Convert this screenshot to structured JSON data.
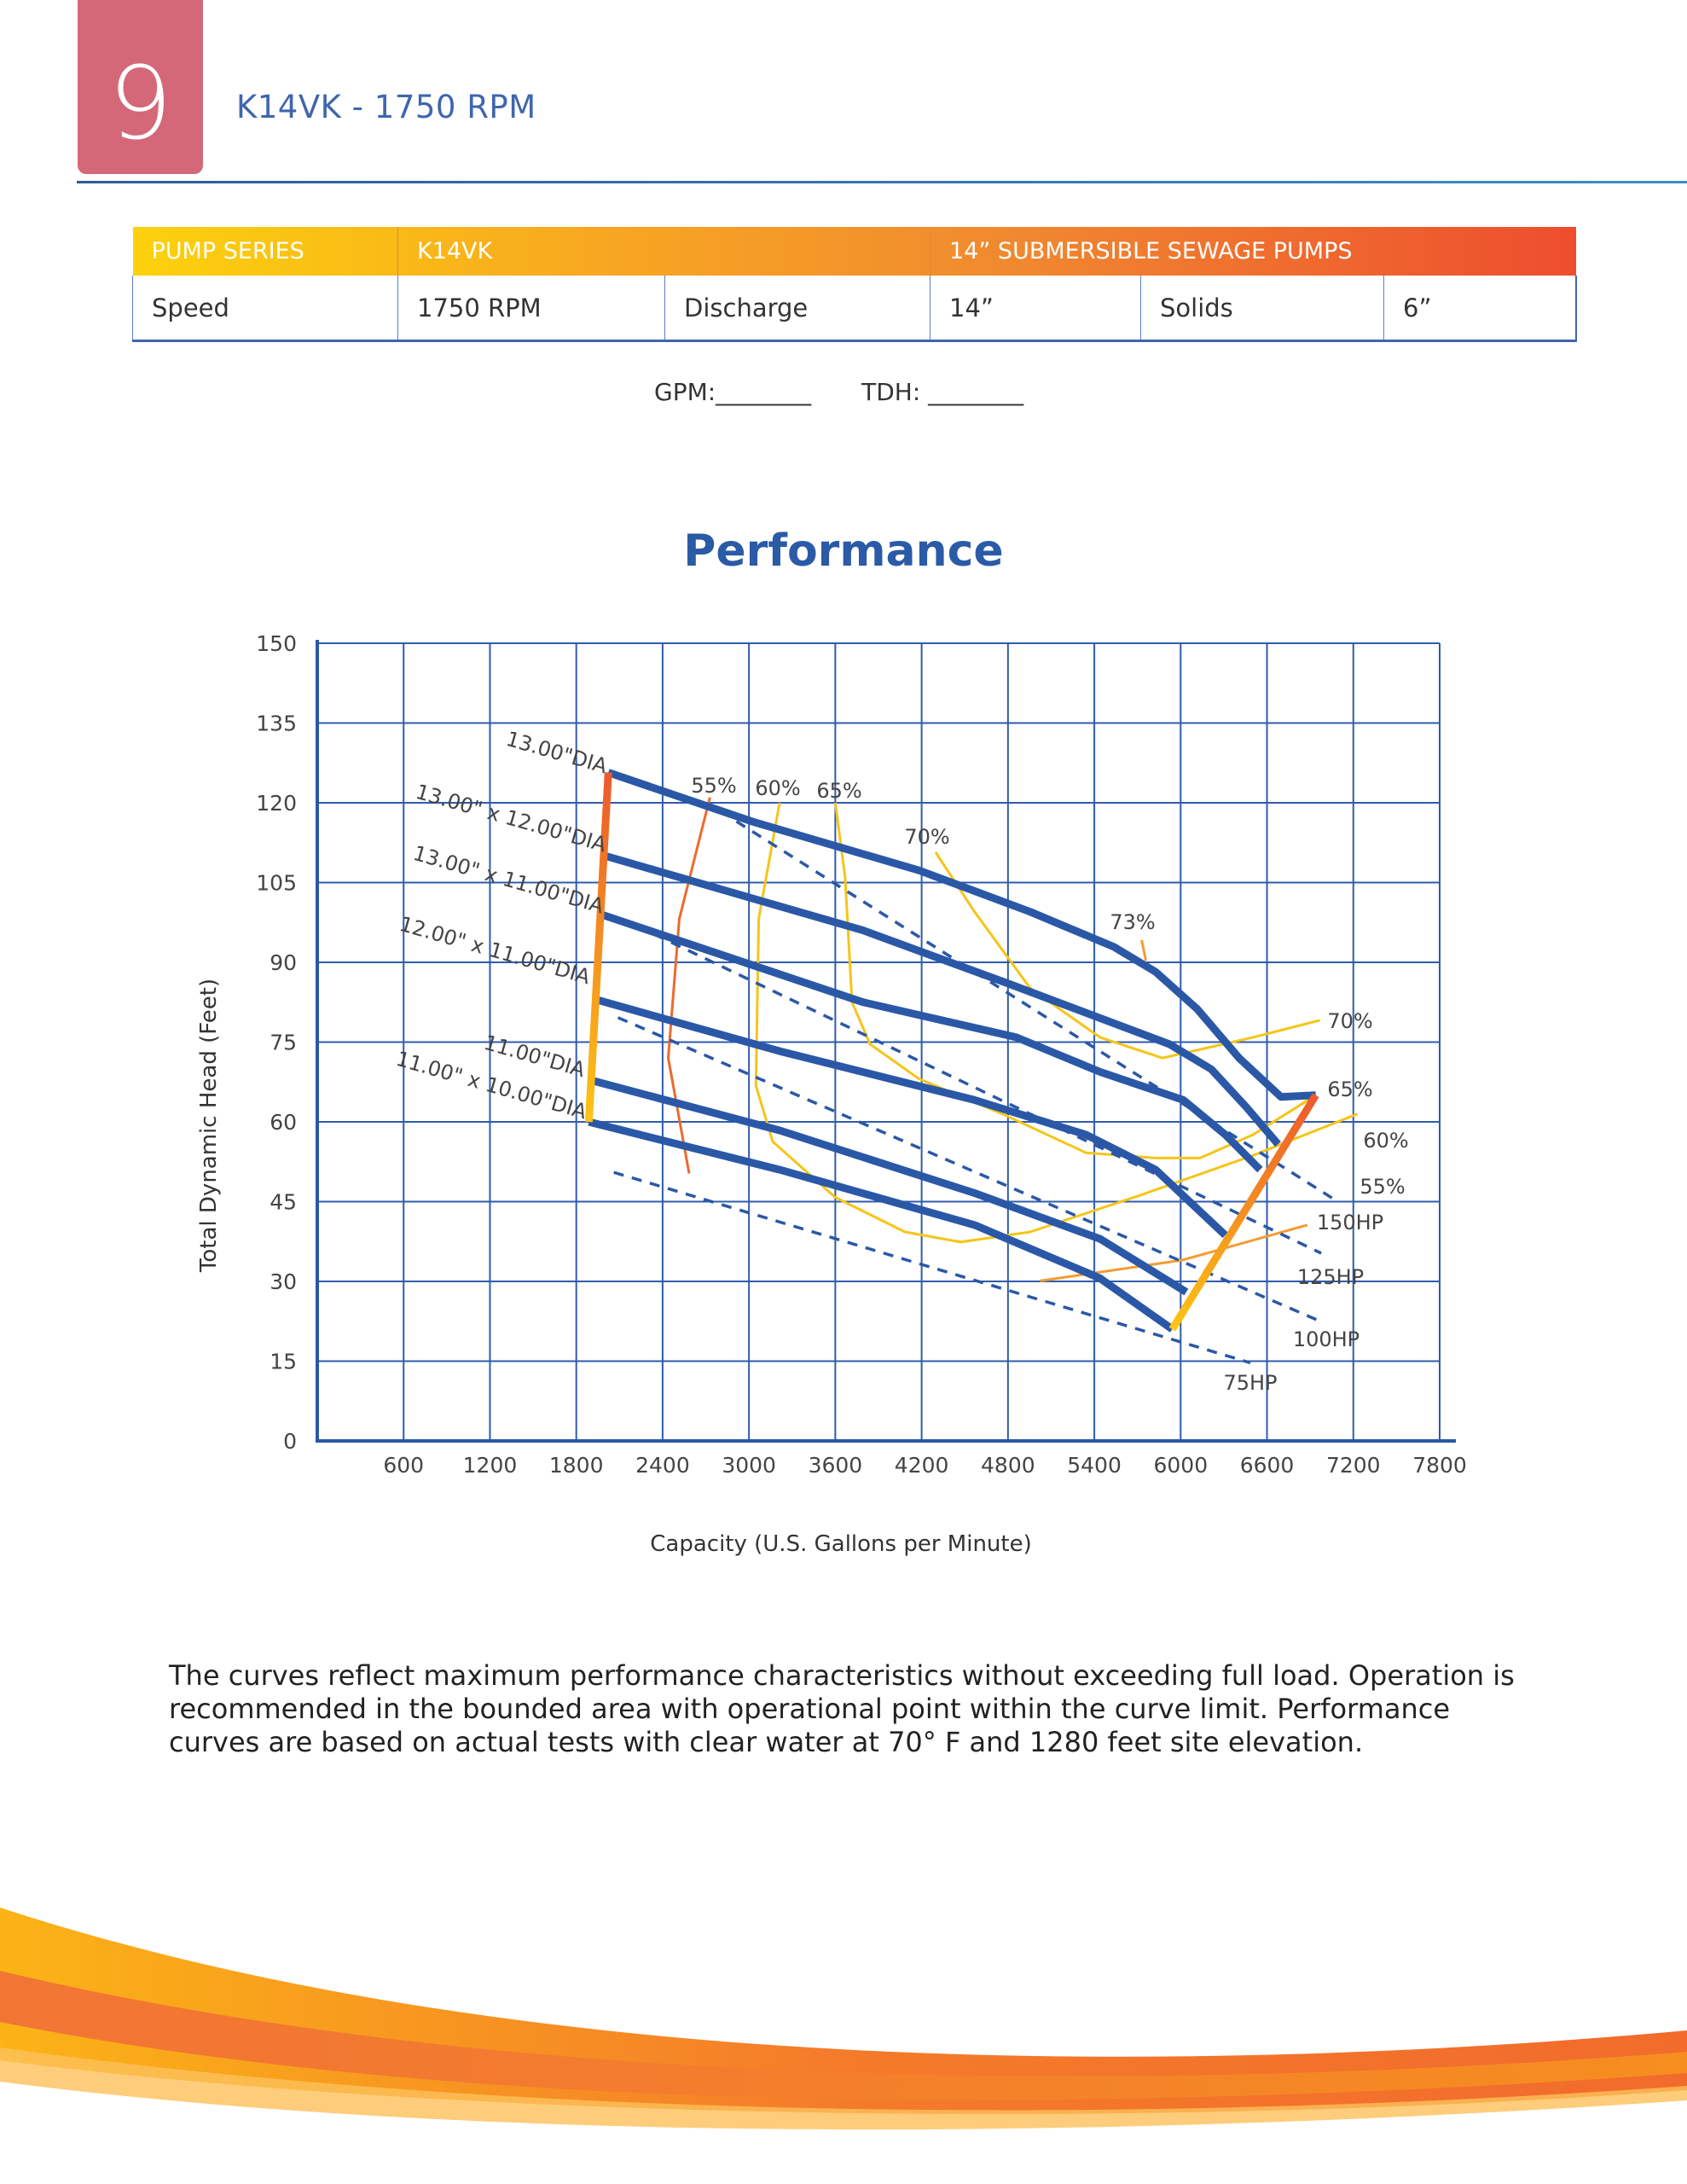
{
  "header": {
    "section_number": "9",
    "title": "K14VK - 1750 RPM"
  },
  "spec_table": {
    "head": [
      "PUMP SERIES",
      "K14VK",
      "14” SUBMERSIBLE SEWAGE PUMPS"
    ],
    "body": [
      "Speed",
      "1750 RPM",
      "Discharge",
      "14”",
      "Solids",
      "6”"
    ]
  },
  "fill_in": {
    "gpm": "GPM:________",
    "tdh": "TDH: ________"
  },
  "section_title": "Performance",
  "colors": {
    "head_curve": "#2b58a6",
    "grid": "#2f5cab",
    "yellow": "#f5c518",
    "orange": "#f39c33",
    "red_orange": "#ec6a30",
    "accent_tab": "#d56878"
  },
  "chart_data": {
    "type": "line",
    "xlabel": "Capacity (U.S. Gallons per Minute)",
    "ylabel": "Total Dynamic Head (Feet)",
    "xlim": [
      0,
      7800
    ],
    "ylim": [
      0,
      150
    ],
    "grid": true,
    "xticks": [
      600,
      1200,
      1800,
      2400,
      3000,
      3600,
      4200,
      4800,
      5400,
      6000,
      6600,
      7200,
      7800
    ],
    "yticks": [
      0,
      15,
      30,
      45,
      60,
      75,
      90,
      105,
      120,
      135,
      150
    ],
    "head_curves": [
      {
        "name": "13.00\"DIA",
        "points": [
          [
            2023,
            125.7
          ],
          [
            3019,
            116.5
          ],
          [
            4181,
            107.3
          ],
          [
            4955,
            99.5
          ],
          [
            5536,
            92.9
          ],
          [
            5826,
            88.2
          ],
          [
            6116,
            81.2
          ],
          [
            6406,
            72
          ],
          [
            6697,
            64.7
          ],
          [
            6939,
            65
          ]
        ]
      },
      {
        "name": "13.00\" x 12.00\"DIA",
        "points": [
          [
            2003,
            110
          ],
          [
            3794,
            96
          ],
          [
            4762,
            86.4
          ],
          [
            5923,
            74.6
          ],
          [
            6213,
            69.9
          ],
          [
            6455,
            62.8
          ],
          [
            6677,
            55.8
          ]
        ]
      },
      {
        "name": "13.00\" x 11.00\"DIA",
        "points": [
          [
            1974,
            99
          ],
          [
            3794,
            82.5
          ],
          [
            4858,
            75.9
          ],
          [
            5439,
            69.4
          ],
          [
            6019,
            64.1
          ],
          [
            6310,
            57.6
          ],
          [
            6552,
            51
          ]
        ]
      },
      {
        "name": "12.00\" x 11.00\"DIA",
        "points": [
          [
            1936,
            83
          ],
          [
            3213,
            73.3
          ],
          [
            4568,
            64.1
          ],
          [
            5342,
            57.6
          ],
          [
            5826,
            51
          ],
          [
            6310,
            38.7
          ]
        ]
      },
      {
        "name": "11.00\"DIA",
        "points": [
          [
            1906,
            67.8
          ],
          [
            3213,
            58.4
          ],
          [
            4568,
            46.6
          ],
          [
            5439,
            38
          ],
          [
            6039,
            28
          ]
        ]
      },
      {
        "name": "11.00\" x 10.00\"DIA",
        "points": [
          [
            1887,
            60
          ],
          [
            3213,
            51
          ],
          [
            4568,
            40.6
          ],
          [
            5439,
            30.6
          ],
          [
            5942,
            21
          ]
        ]
      }
    ],
    "efficiency_curves": [
      {
        "name": "55%",
        "color": "#ec6a30",
        "points": [
          [
            2729,
            121
          ],
          [
            2516,
            98.2
          ],
          [
            2439,
            72
          ],
          [
            2584,
            50.3
          ]
        ]
      },
      {
        "name": "60%",
        "color": "#f5c518",
        "points": [
          [
            3213,
            120
          ],
          [
            3068,
            98.2
          ],
          [
            3048,
            66.8
          ],
          [
            3165,
            56.3
          ],
          [
            3600,
            45.8
          ],
          [
            4084,
            39.3
          ],
          [
            4471,
            37.4
          ],
          [
            4955,
            39.3
          ],
          [
            5729,
            46.3
          ],
          [
            6503,
            53.7
          ],
          [
            7229,
            61.5
          ]
        ]
      },
      {
        "name": "65%",
        "color": "#f5c518",
        "points": [
          [
            3600,
            120
          ],
          [
            3668,
            106
          ],
          [
            3716,
            82.5
          ],
          [
            3842,
            74.6
          ],
          [
            4181,
            68.1
          ],
          [
            4762,
            61.5
          ],
          [
            5342,
            54.2
          ],
          [
            5826,
            53.2
          ],
          [
            6135,
            53.2
          ],
          [
            6503,
            57.6
          ],
          [
            6939,
            65
          ]
        ]
      },
      {
        "name": "70%",
        "color": "#f5c518",
        "points": [
          [
            4297,
            110.7
          ],
          [
            4568,
            99.5
          ],
          [
            4955,
            85.1
          ],
          [
            5439,
            75.9
          ],
          [
            5874,
            72
          ],
          [
            6503,
            75.9
          ],
          [
            6968,
            79.1
          ]
        ]
      },
      {
        "name": "73%",
        "color": "#f39c33",
        "points": [
          [
            5729,
            94.2
          ],
          [
            5758,
            90.3
          ]
        ]
      },
      {
        "name": "55%",
        "color": "#f39c33",
        "points": [
          [
            5023,
            30.1
          ],
          [
            6010,
            34
          ],
          [
            6881,
            40.6
          ]
        ]
      }
    ],
    "hp_lines": [
      {
        "name": "150HP",
        "points": [
          [
            2913,
            116.5
          ],
          [
            7074,
            45.3
          ]
        ]
      },
      {
        "name": "125HP",
        "points": [
          [
            2342,
            95.3
          ],
          [
            6977,
            35.3
          ]
        ]
      },
      {
        "name": "100HP",
        "points": [
          [
            2090,
            79.6
          ],
          [
            6987,
            22.3
          ]
        ]
      },
      {
        "name": "75HP",
        "points": [
          [
            2061,
            50.5
          ],
          [
            6484,
            14.7
          ]
        ]
      }
    ],
    "limit_lines": [
      {
        "points": [
          [
            2023,
            125.7
          ],
          [
            1887,
            60
          ]
        ]
      },
      {
        "points": [
          [
            6939,
            65
          ],
          [
            5942,
            21
          ]
        ]
      }
    ],
    "efficiency_labels": [
      "55%",
      "60%",
      "65%",
      "70%",
      "73%",
      "70%",
      "65%",
      "60%",
      "55%"
    ],
    "hp_labels": [
      "150HP",
      "125HP",
      "100HP",
      "75HP"
    ]
  },
  "note": "The curves reflect maximum performance characteristics without exceeding full load. Operation is recommended in the bounded area with operational point within the curve limit. Performance curves are based on actual tests with clear water at 70° F and 1280 feet site elevation."
}
